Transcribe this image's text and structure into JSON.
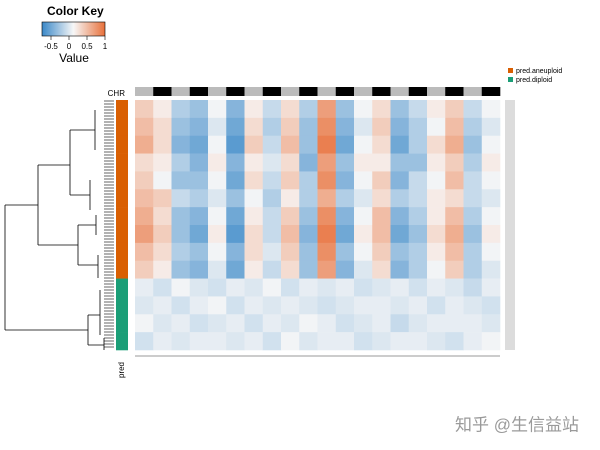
{
  "chart_data": {
    "type": "heatmap",
    "color_key": {
      "title": "Color Key",
      "xlabel": "Value",
      "xlim": [
        -0.75,
        1
      ],
      "xticks": [
        -0.5,
        0,
        0.5,
        1
      ],
      "colors": [
        "#3a88c8",
        "#f7f7f7",
        "#e8703a"
      ]
    },
    "column_annotation_label": "CHR",
    "row_annotation_label": "pred",
    "legend": [
      {
        "name": "pred.aneuploid",
        "color": "#d95f02"
      },
      {
        "name": "pred.diploid",
        "color": "#1b9e77"
      }
    ],
    "row_group": [
      0,
      0,
      0,
      0,
      0,
      0,
      0,
      0,
      0,
      0,
      1,
      1,
      1,
      1
    ],
    "matrix": [
      [
        0.4,
        0.2,
        -0.2,
        -0.3,
        0.1,
        -0.4,
        0.2,
        -0.1,
        0.3,
        -0.2,
        0.7,
        -0.3,
        0.1,
        0.3,
        -0.3,
        -0.1,
        0.2,
        0.4,
        -0.1,
        0.1
      ],
      [
        0.5,
        0.3,
        -0.3,
        -0.4,
        0.0,
        -0.5,
        0.3,
        -0.2,
        0.4,
        -0.3,
        0.8,
        -0.4,
        0.0,
        0.4,
        -0.4,
        -0.2,
        0.1,
        0.5,
        -0.2,
        0.0
      ],
      [
        0.6,
        0.3,
        -0.4,
        -0.5,
        0.1,
        -0.6,
        0.4,
        -0.1,
        0.5,
        -0.3,
        0.9,
        -0.5,
        0.1,
        0.3,
        -0.5,
        -0.2,
        0.3,
        0.6,
        -0.3,
        0.1
      ],
      [
        0.3,
        0.2,
        -0.2,
        -0.4,
        0.2,
        -0.4,
        0.2,
        0.0,
        0.3,
        -0.4,
        0.7,
        -0.3,
        0.2,
        0.2,
        -0.3,
        -0.3,
        0.2,
        0.4,
        -0.2,
        0.2
      ],
      [
        0.4,
        0.1,
        -0.3,
        -0.3,
        0.1,
        -0.5,
        0.3,
        -0.1,
        0.4,
        -0.2,
        0.8,
        -0.4,
        0.1,
        0.4,
        -0.4,
        -0.1,
        0.1,
        0.5,
        -0.1,
        0.1
      ],
      [
        0.5,
        0.4,
        -0.1,
        -0.2,
        0.0,
        -0.3,
        0.1,
        -0.2,
        0.2,
        -0.2,
        0.6,
        -0.2,
        0.0,
        0.3,
        -0.2,
        -0.1,
        0.2,
        0.3,
        -0.1,
        0.0
      ],
      [
        0.6,
        0.3,
        -0.3,
        -0.4,
        0.1,
        -0.5,
        0.2,
        -0.1,
        0.4,
        -0.3,
        0.8,
        -0.4,
        0.1,
        0.5,
        -0.4,
        -0.2,
        0.2,
        0.5,
        -0.2,
        0.1
      ],
      [
        0.7,
        0.4,
        -0.3,
        -0.5,
        0.2,
        -0.6,
        0.3,
        -0.1,
        0.5,
        -0.4,
        0.9,
        -0.5,
        0.2,
        0.5,
        -0.5,
        -0.3,
        0.3,
        0.6,
        -0.3,
        0.2
      ],
      [
        0.5,
        0.3,
        -0.2,
        -0.3,
        0.1,
        -0.4,
        0.3,
        0.0,
        0.4,
        -0.3,
        0.8,
        -0.3,
        0.1,
        0.4,
        -0.3,
        -0.2,
        0.2,
        0.5,
        -0.2,
        0.1
      ],
      [
        0.4,
        0.2,
        -0.3,
        -0.4,
        0.0,
        -0.5,
        0.2,
        -0.1,
        0.3,
        -0.3,
        0.7,
        -0.4,
        0.0,
        0.3,
        -0.4,
        -0.2,
        0.1,
        0.4,
        -0.2,
        0.0
      ],
      [
        0.05,
        -0.05,
        0.1,
        0,
        -0.05,
        0.05,
        0,
        0.1,
        -0.05,
        0.05,
        0,
        0.05,
        -0.05,
        0,
        0.05,
        -0.05,
        0.05,
        0,
        -0.1,
        0.05
      ],
      [
        0,
        0.05,
        -0.05,
        0.05,
        0.1,
        -0.05,
        0.05,
        0,
        0.05,
        0,
        -0.05,
        0,
        0.05,
        0.05,
        0,
        0.05,
        -0.05,
        0.05,
        0,
        -0.05
      ],
      [
        0.1,
        0,
        0.05,
        -0.05,
        0,
        0.05,
        -0.05,
        0.05,
        0,
        0.1,
        0.05,
        -0.05,
        0,
        0.05,
        -0.1,
        0,
        0.05,
        0.05,
        0.05,
        0
      ],
      [
        -0.05,
        0.05,
        0,
        0.05,
        0.05,
        0,
        0.05,
        -0.05,
        0.1,
        0,
        0.05,
        0.05,
        -0.05,
        0,
        0.05,
        0.05,
        0,
        -0.05,
        0.05,
        0.1
      ]
    ],
    "watermark": "知乎 @生信益站"
  }
}
